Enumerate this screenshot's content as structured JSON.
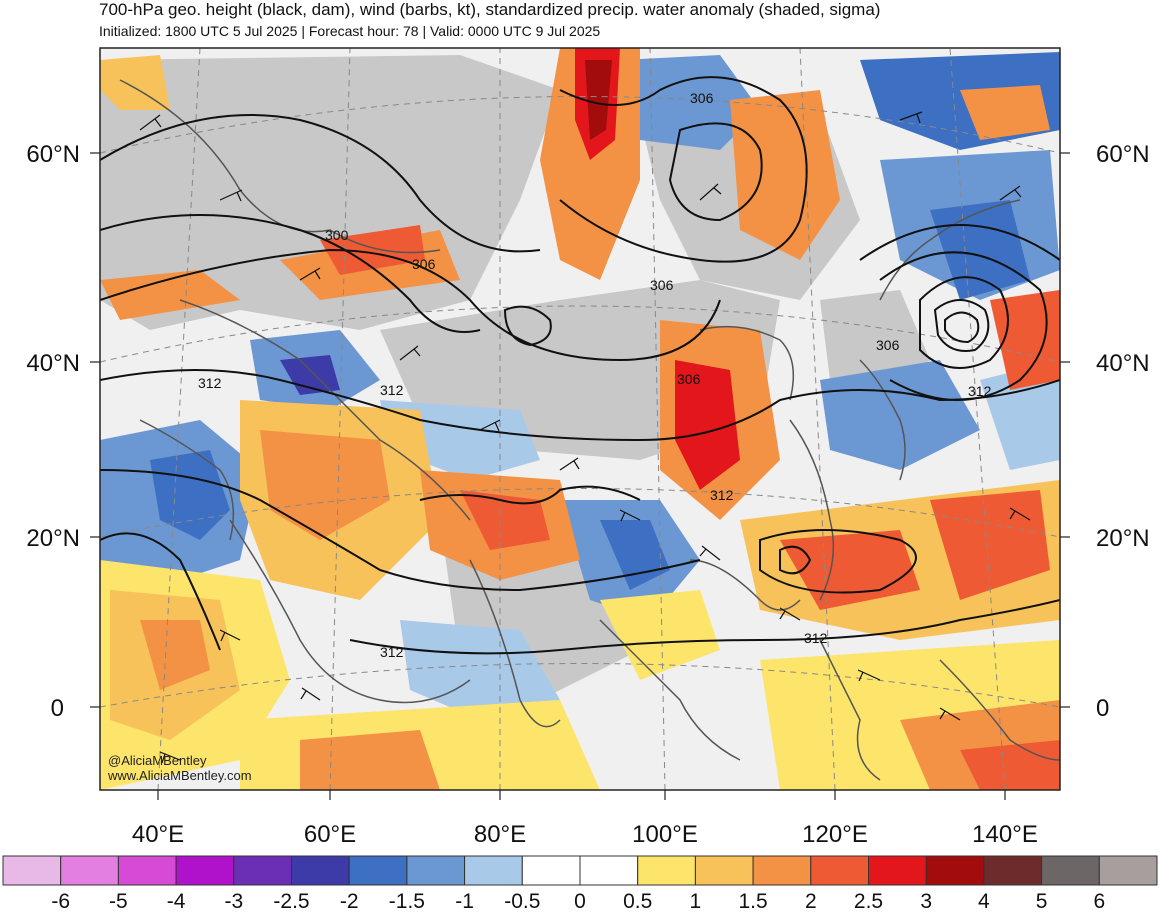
{
  "header": {
    "title": "700-hPa geo. height (black, dam), wind (barbs, kt), standardized precip. water anomaly (shaded, sigma)",
    "subtitle": "Initialized: 1800 UTC 5 Jul 2025 | Forecast hour: 78 | Valid: 0000 UTC 9 Jul 2025"
  },
  "map": {
    "lat_labels": [
      "60°N",
      "40°N",
      "20°N",
      "0"
    ],
    "lon_labels": [
      "40°E",
      "60°E",
      "80°E",
      "100°E",
      "120°E",
      "140°E"
    ],
    "contour_labels": [
      "306",
      "300",
      "306",
      "306",
      "306",
      "306",
      "312",
      "312",
      "312",
      "312",
      "312",
      "312"
    ],
    "credit": [
      "@AliciaMBentley",
      "www.AliciaMBentley.com"
    ],
    "land_color": "#c8c8c8",
    "coast_color": "#555555"
  },
  "colorbar": {
    "labels": [
      "-6",
      "-5",
      "-4",
      "-3",
      "-2.5",
      "-2",
      "-1.5",
      "-1",
      "-0.5",
      "0",
      "0.5",
      "1",
      "1.5",
      "2",
      "2.5",
      "3",
      "4",
      "5",
      "6"
    ],
    "colors": [
      "#e8b8e6",
      "#e27fe0",
      "#d64ad6",
      "#b012cc",
      "#6b2fb5",
      "#3c3ba8",
      "#3d6fc2",
      "#6b98d2",
      "#a9c9e8",
      "#ffffff",
      "#ffffff",
      "#fce56a",
      "#f7c25a",
      "#f39244",
      "#ee5a33",
      "#e2161b",
      "#a30c0d",
      "#6e2b2b",
      "#6d6666",
      "#a79e9e"
    ]
  }
}
